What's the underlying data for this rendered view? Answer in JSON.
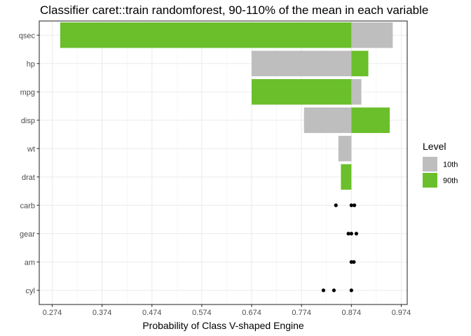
{
  "chart_data": {
    "type": "bar",
    "title": "Classifier caret::train randomforest, 90-110% of the mean in each variable",
    "xlabel": "Probability of Class V-shaped Engine",
    "ylabel": "",
    "xlim": [
      0.248,
      0.986
    ],
    "x_ticks": [
      "0.274",
      "0.374",
      "0.474",
      "0.574",
      "0.674",
      "0.774",
      "0.874",
      "0.974"
    ],
    "baseline": 0.874,
    "categories": [
      "qsec",
      "hp",
      "mpg",
      "disp",
      "wt",
      "drat",
      "carb",
      "gear",
      "am",
      "cyl"
    ],
    "series": [
      {
        "name": "10th",
        "color": "#bebebe",
        "values": [
          0.957,
          0.674,
          0.894,
          0.779,
          0.848,
          null,
          null,
          null,
          null,
          null
        ]
      },
      {
        "name": "90th",
        "color": "#6abf2a",
        "values": [
          0.29,
          0.908,
          0.674,
          0.951,
          null,
          0.853,
          null,
          null,
          null,
          null
        ]
      }
    ],
    "points": [
      {
        "category": "carb",
        "x": 0.843
      },
      {
        "category": "carb",
        "x": 0.874
      },
      {
        "category": "carb",
        "x": 0.88
      },
      {
        "category": "gear",
        "x": 0.868
      },
      {
        "category": "gear",
        "x": 0.874
      },
      {
        "category": "gear",
        "x": 0.884
      },
      {
        "category": "am",
        "x": 0.874
      },
      {
        "category": "am",
        "x": 0.879
      },
      {
        "category": "cyl",
        "x": 0.818
      },
      {
        "category": "cyl",
        "x": 0.839
      },
      {
        "category": "cyl",
        "x": 0.874
      }
    ],
    "legend": {
      "title": "Level",
      "position": "right",
      "items": [
        "10th",
        "90th"
      ]
    },
    "grid": true
  }
}
